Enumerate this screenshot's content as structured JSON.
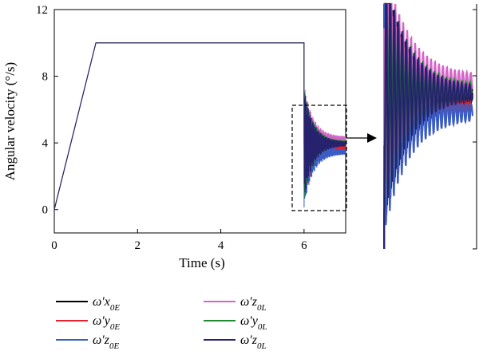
{
  "chart_data": {
    "type": "line",
    "xlabel": "Time (s)",
    "ylabel": "Angular velocity (°/s)",
    "xlim": [
      0,
      7
    ],
    "ylim": [
      -1.4,
      12
    ],
    "x_ticks": [
      0,
      2,
      4,
      6
    ],
    "y_ticks": [
      0,
      4,
      8,
      12
    ],
    "grid": false,
    "legend_position": "bottom",
    "profile": {
      "t": [
        0,
        1,
        6
      ],
      "value": [
        0,
        10,
        10
      ],
      "description_free_note": ""
    },
    "series": [
      {
        "name": "ω′x0E",
        "parts": [
          {
            "t": "ω′",
            "s": ""
          },
          {
            "t": "x",
            "s": ""
          },
          {
            "t": "0E",
            "s": "sub"
          }
        ],
        "color": "#000000",
        "final": 3.85
      },
      {
        "name": "ω′y0E",
        "parts": [
          {
            "t": "ω′",
            "s": ""
          },
          {
            "t": "y",
            "s": ""
          },
          {
            "t": "0E",
            "s": "sub"
          }
        ],
        "color": "#e8202a",
        "final": 3.7
      },
      {
        "name": "ω′z0E",
        "parts": [
          {
            "t": "ω′",
            "s": ""
          },
          {
            "t": "z",
            "s": ""
          },
          {
            "t": "0E",
            "s": "sub"
          }
        ],
        "color": "#3b5cc4",
        "final": 3.45
      },
      {
        "name": "ω′z0L",
        "parts": [
          {
            "t": "ω′",
            "s": ""
          },
          {
            "t": "z",
            "s": ""
          },
          {
            "t": "0L",
            "s": "sub"
          }
        ],
        "color": "#d466c8",
        "final": 4.25
      },
      {
        "name": "ω′y0L",
        "parts": [
          {
            "t": "ω′",
            "s": ""
          },
          {
            "t": "y",
            "s": ""
          },
          {
            "t": "0L",
            "s": "sub"
          }
        ],
        "color": "#1e8c2e",
        "final": 4.0
      },
      {
        "name": "ω′z0L",
        "parts": [
          {
            "t": "ω′",
            "s": ""
          },
          {
            "t": "z",
            "s": ""
          },
          {
            "t": "0L",
            "s": "sub"
          }
        ],
        "color": "#27226e",
        "final": 3.95
      }
    ],
    "zoom_region": {
      "xlim": [
        5.9,
        7
      ],
      "ylim": [
        0,
        6.2
      ]
    }
  }
}
